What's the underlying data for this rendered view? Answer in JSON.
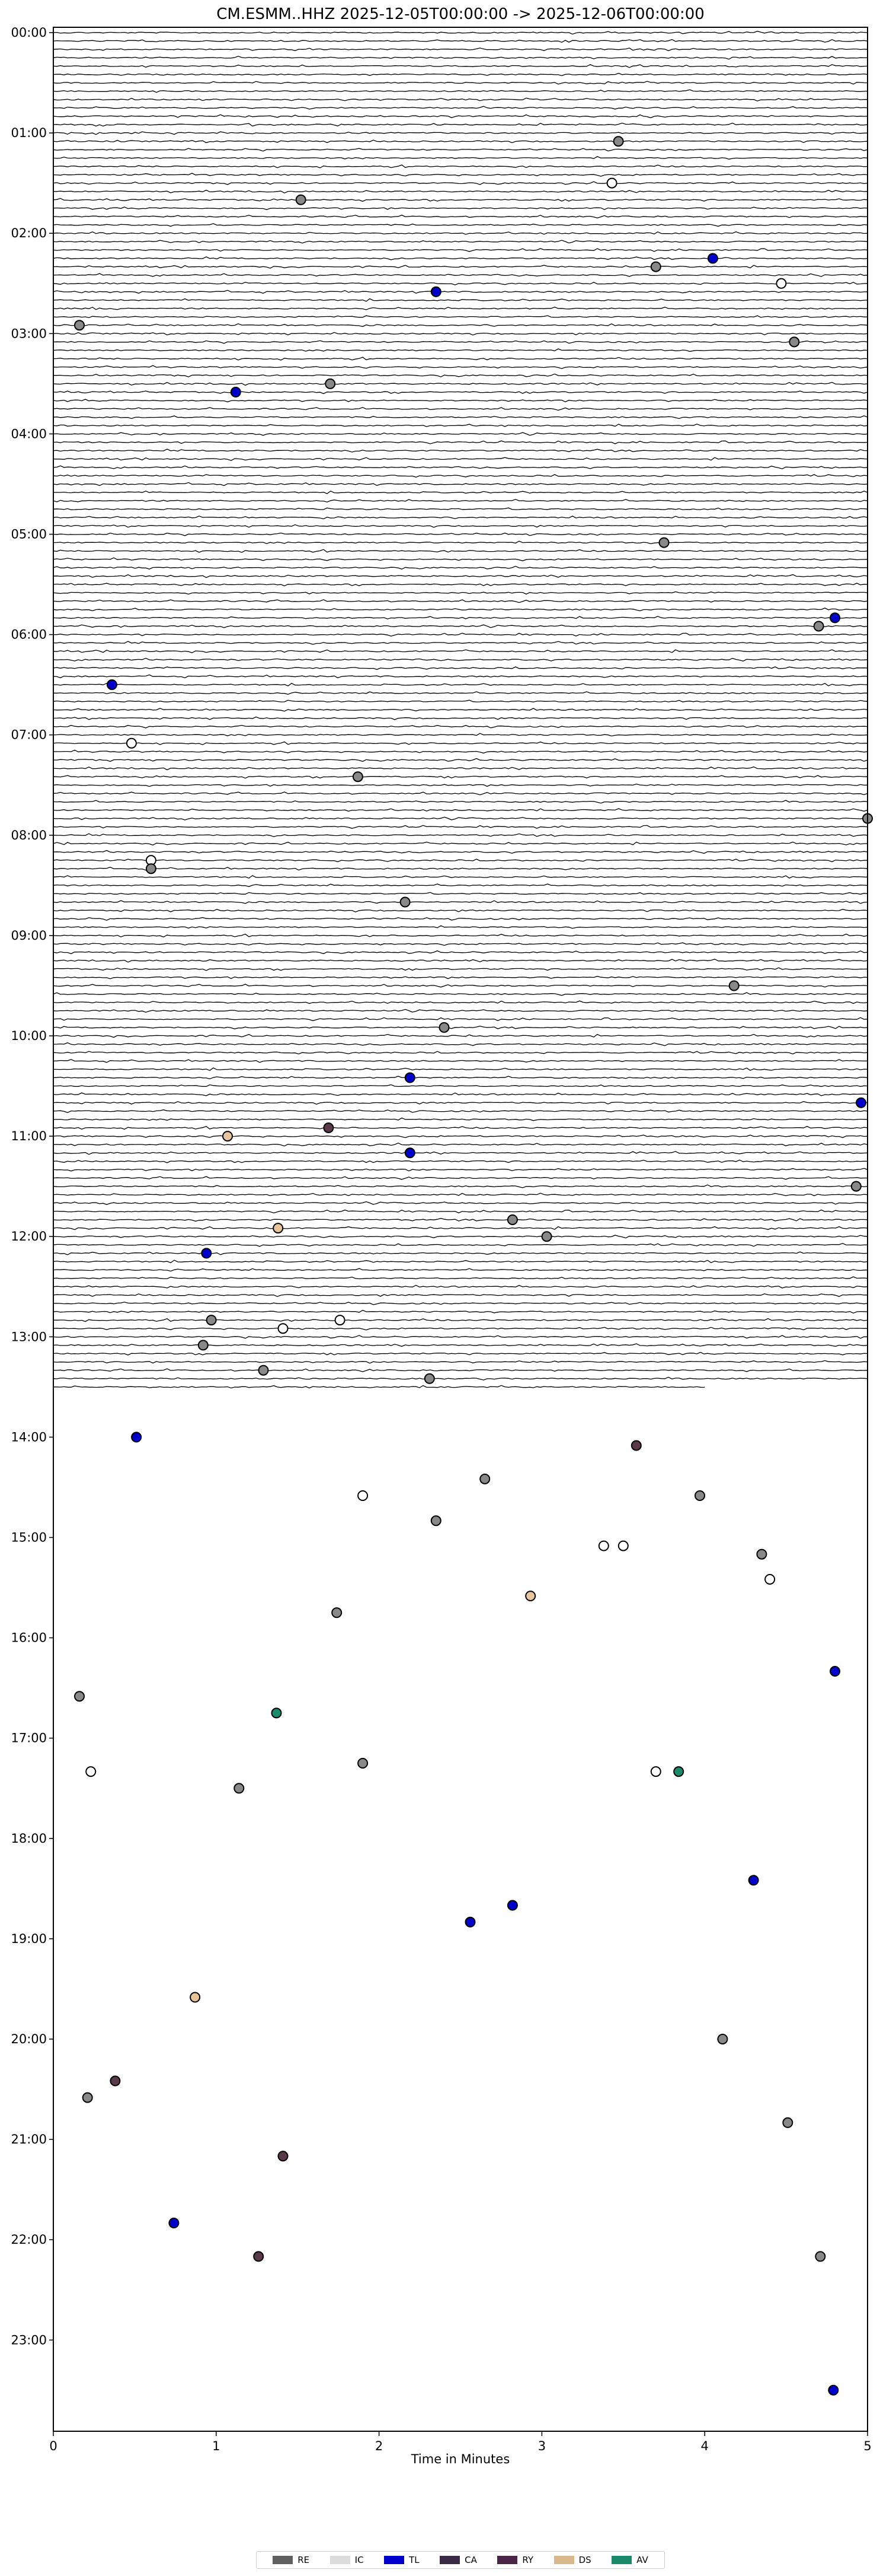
{
  "chart_data": {
    "type": "scatter",
    "title": "CM.ESMM..HHZ  2025-12-05T00:00:00 -> 2025-12-06T00:00:00",
    "xlabel": "Time in Minutes",
    "ylabel": "",
    "xlim": [
      0,
      5
    ],
    "x_ticks": [
      "0",
      "1",
      "2",
      "3",
      "4",
      "5"
    ],
    "hour_labels": [
      "00:00",
      "01:00",
      "02:00",
      "03:00",
      "04:00",
      "05:00",
      "06:00",
      "07:00",
      "08:00",
      "09:00",
      "10:00",
      "11:00",
      "12:00",
      "13:00",
      "14:00",
      "15:00",
      "16:00",
      "17:00",
      "18:00",
      "19:00",
      "20:00",
      "21:00",
      "22:00",
      "23:00"
    ],
    "trace_rows_per_hour": 12,
    "trace_end_time": "13:30",
    "trace_last_row_end_minute": 4.0,
    "grid": false,
    "legend_position": "bottom-center",
    "legend": [
      {
        "code": "RE",
        "color": "#606060"
      },
      {
        "code": "IC",
        "color": "#dcdcdc"
      },
      {
        "code": "TL",
        "color": "#0000cc"
      },
      {
        "code": "CA",
        "color": "#3a2a45"
      },
      {
        "code": "RY",
        "color": "#4a2545"
      },
      {
        "code": "DS",
        "color": "#d8b88a"
      },
      {
        "code": "AV",
        "color": "#1a8a6a"
      }
    ],
    "point_colors": {
      "RE": "#888888",
      "IC": "#ffffff",
      "TL": "#0000cc",
      "CA": "#5a3a4a",
      "RY": "#5a3a4a",
      "DS": "#e8c49a",
      "AV": "#1a8a6a"
    },
    "events": [
      {
        "time": "01:05",
        "minute": 3.47,
        "cat": "RE"
      },
      {
        "time": "01:30",
        "minute": 3.43,
        "cat": "IC"
      },
      {
        "time": "01:40",
        "minute": 1.52,
        "cat": "RE"
      },
      {
        "time": "02:15",
        "minute": 4.05,
        "cat": "TL"
      },
      {
        "time": "02:20",
        "minute": 3.7,
        "cat": "RE"
      },
      {
        "time": "02:30",
        "minute": 4.47,
        "cat": "IC"
      },
      {
        "time": "02:35",
        "minute": 2.35,
        "cat": "TL"
      },
      {
        "time": "02:55",
        "minute": 0.16,
        "cat": "RE"
      },
      {
        "time": "03:05",
        "minute": 4.55,
        "cat": "RE"
      },
      {
        "time": "03:30",
        "minute": 1.7,
        "cat": "RE"
      },
      {
        "time": "03:35",
        "minute": 1.12,
        "cat": "TL"
      },
      {
        "time": "05:05",
        "minute": 3.75,
        "cat": "RE"
      },
      {
        "time": "05:50",
        "minute": 4.8,
        "cat": "TL"
      },
      {
        "time": "05:55",
        "minute": 4.7,
        "cat": "RE"
      },
      {
        "time": "06:30",
        "minute": 0.36,
        "cat": "TL"
      },
      {
        "time": "07:05",
        "minute": 0.48,
        "cat": "IC"
      },
      {
        "time": "07:25",
        "minute": 1.87,
        "cat": "RE"
      },
      {
        "time": "07:50",
        "minute": 5.0,
        "cat": "RE"
      },
      {
        "time": "08:15",
        "minute": 0.6,
        "cat": "IC"
      },
      {
        "time": "08:20",
        "minute": 0.6,
        "cat": "RE"
      },
      {
        "time": "08:40",
        "minute": 2.16,
        "cat": "RE"
      },
      {
        "time": "09:30",
        "minute": 4.18,
        "cat": "RE"
      },
      {
        "time": "09:55",
        "minute": 2.4,
        "cat": "RE"
      },
      {
        "time": "10:25",
        "minute": 2.19,
        "cat": "TL"
      },
      {
        "time": "10:40",
        "minute": 4.96,
        "cat": "TL"
      },
      {
        "time": "10:55",
        "minute": 1.69,
        "cat": "RY"
      },
      {
        "time": "11:00",
        "minute": 1.07,
        "cat": "DS"
      },
      {
        "time": "11:10",
        "minute": 2.19,
        "cat": "TL"
      },
      {
        "time": "11:30",
        "minute": 4.93,
        "cat": "RE"
      },
      {
        "time": "11:50",
        "minute": 2.82,
        "cat": "RE"
      },
      {
        "time": "11:55",
        "minute": 1.38,
        "cat": "DS"
      },
      {
        "time": "12:00",
        "minute": 3.03,
        "cat": "RE"
      },
      {
        "time": "12:10",
        "minute": 0.94,
        "cat": "TL"
      },
      {
        "time": "12:50",
        "minute": 0.97,
        "cat": "RE"
      },
      {
        "time": "12:50",
        "minute": 1.76,
        "cat": "IC"
      },
      {
        "time": "12:55",
        "minute": 1.41,
        "cat": "IC"
      },
      {
        "time": "13:05",
        "minute": 0.92,
        "cat": "RE"
      },
      {
        "time": "13:20",
        "minute": 1.29,
        "cat": "RE"
      },
      {
        "time": "13:25",
        "minute": 2.31,
        "cat": "RE"
      },
      {
        "time": "14:00",
        "minute": 0.51,
        "cat": "TL"
      },
      {
        "time": "14:05",
        "minute": 3.58,
        "cat": "RY"
      },
      {
        "time": "14:25",
        "minute": 2.65,
        "cat": "RE"
      },
      {
        "time": "14:35",
        "minute": 1.9,
        "cat": "IC"
      },
      {
        "time": "14:35",
        "minute": 3.97,
        "cat": "RE"
      },
      {
        "time": "14:50",
        "minute": 2.35,
        "cat": "RE"
      },
      {
        "time": "15:05",
        "minute": 3.38,
        "cat": "IC"
      },
      {
        "time": "15:05",
        "minute": 3.5,
        "cat": "IC"
      },
      {
        "time": "15:10",
        "minute": 4.35,
        "cat": "RE"
      },
      {
        "time": "15:25",
        "minute": 4.4,
        "cat": "IC"
      },
      {
        "time": "15:35",
        "minute": 2.93,
        "cat": "DS"
      },
      {
        "time": "15:45",
        "minute": 1.74,
        "cat": "RE"
      },
      {
        "time": "16:20",
        "minute": 4.8,
        "cat": "TL"
      },
      {
        "time": "16:35",
        "minute": 0.16,
        "cat": "RE"
      },
      {
        "time": "16:45",
        "minute": 1.37,
        "cat": "AV"
      },
      {
        "time": "17:15",
        "minute": 1.9,
        "cat": "RE"
      },
      {
        "time": "17:20",
        "minute": 0.23,
        "cat": "IC"
      },
      {
        "time": "17:20",
        "minute": 3.7,
        "cat": "IC"
      },
      {
        "time": "17:20",
        "minute": 3.84,
        "cat": "AV"
      },
      {
        "time": "17:30",
        "minute": 1.14,
        "cat": "RE"
      },
      {
        "time": "18:25",
        "minute": 4.3,
        "cat": "TL"
      },
      {
        "time": "18:40",
        "minute": 2.82,
        "cat": "TL"
      },
      {
        "time": "18:50",
        "minute": 2.56,
        "cat": "TL"
      },
      {
        "time": "19:35",
        "minute": 0.87,
        "cat": "DS"
      },
      {
        "time": "20:00",
        "minute": 4.11,
        "cat": "RE"
      },
      {
        "time": "20:25",
        "minute": 0.38,
        "cat": "RY"
      },
      {
        "time": "20:35",
        "minute": 0.21,
        "cat": "RE"
      },
      {
        "time": "20:50",
        "minute": 4.51,
        "cat": "RE"
      },
      {
        "time": "21:10",
        "minute": 1.41,
        "cat": "RY"
      },
      {
        "time": "21:50",
        "minute": 0.74,
        "cat": "TL"
      },
      {
        "time": "22:10",
        "minute": 1.26,
        "cat": "RY"
      },
      {
        "time": "22:10",
        "minute": 4.71,
        "cat": "RE"
      },
      {
        "time": "23:30",
        "minute": 4.79,
        "cat": "TL"
      }
    ]
  }
}
